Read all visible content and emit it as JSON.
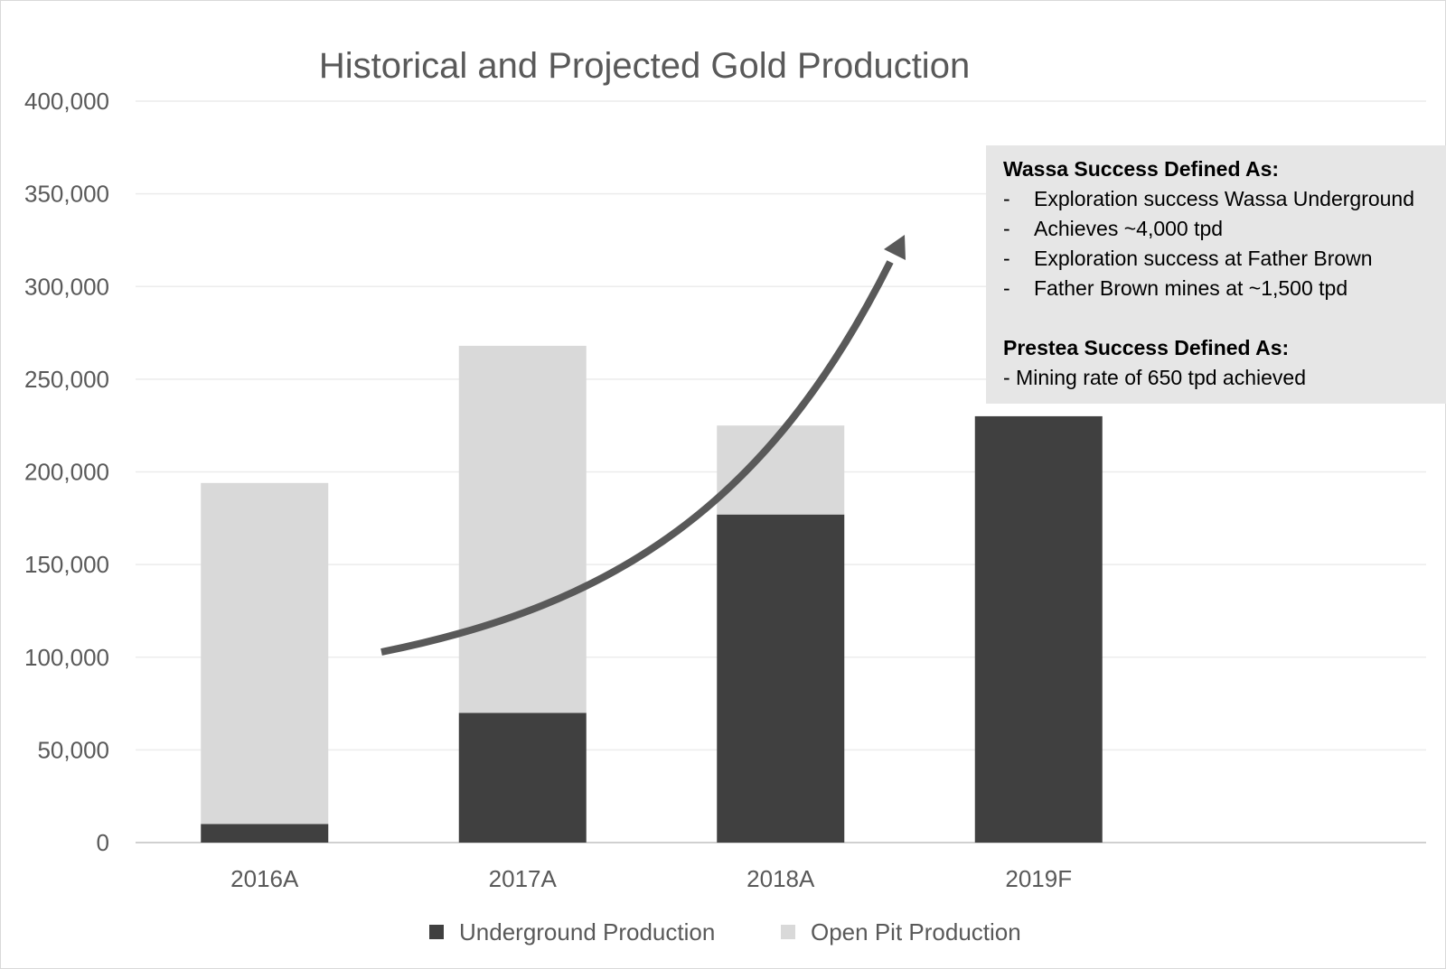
{
  "chart_data": {
    "type": "bar",
    "stacked": true,
    "title": "Historical and Projected Gold Production",
    "categories": [
      "2016A",
      "2017A",
      "2018A",
      "2019F"
    ],
    "series": [
      {
        "name": "Underground Production",
        "color": "#404040",
        "values": [
          10000,
          70000,
          177000,
          230000
        ]
      },
      {
        "name": "Open Pit Production",
        "color": "#d9d9d9",
        "values": [
          184000,
          198000,
          48000,
          0
        ]
      }
    ],
    "ylim": [
      0,
      400000
    ],
    "yticks": [
      0,
      50000,
      100000,
      150000,
      200000,
      250000,
      300000,
      350000,
      400000
    ],
    "ytick_labels": [
      "0",
      "50,000",
      "100,000",
      "150,000",
      "200,000",
      "250,000",
      "300,000",
      "350,000",
      "400,000"
    ],
    "grid": true,
    "legend_position": "bottom",
    "annotation_arrow": "upward curved arrow indicating growth"
  },
  "annotation_box": {
    "wassa_heading": "Wassa Success Defined As:",
    "wassa_items": [
      "Exploration success Wassa Underground",
      "Achieves ~4,000 tpd",
      "Exploration success at Father Brown",
      "Father Brown mines at ~1,500 tpd"
    ],
    "dash": "-",
    "prestea_heading": "Prestea Success Defined As:",
    "prestea_item": "- Mining rate of 650 tpd achieved"
  }
}
